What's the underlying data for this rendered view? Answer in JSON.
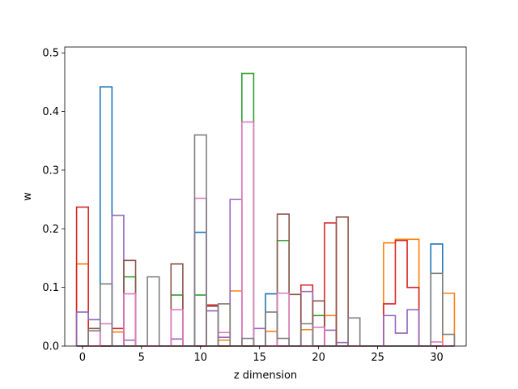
{
  "chart_data": {
    "type": "step",
    "xlabel": "z dimension",
    "ylabel": "w",
    "xlim": [
      -1.5,
      32.5
    ],
    "ylim": [
      0,
      0.51
    ],
    "x_ticks": [
      0,
      5,
      10,
      15,
      20,
      25,
      30
    ],
    "x_tick_labels": [
      "0",
      "5",
      "10",
      "15",
      "20",
      "25",
      "30"
    ],
    "y_ticks": [
      0.0,
      0.1,
      0.2,
      0.3,
      0.4,
      0.5
    ],
    "y_tick_labels": [
      "0.0",
      "0.1",
      "0.2",
      "0.3",
      "0.4",
      "0.5"
    ],
    "grid": false,
    "x": [
      0,
      1,
      2,
      3,
      4,
      5,
      6,
      7,
      8,
      9,
      10,
      11,
      12,
      13,
      14,
      15,
      16,
      17,
      18,
      19,
      20,
      21,
      22,
      23,
      24,
      25,
      26,
      27,
      28,
      29,
      30,
      31
    ],
    "series": [
      {
        "color": "#1f77b4",
        "values": [
          0.0,
          0.0,
          0.442,
          0.0,
          0.0,
          0.0,
          0.0,
          0.0,
          0.0,
          0.0,
          0.194,
          0.0,
          0.0,
          0.0,
          0.0,
          0.0,
          0.089,
          0.0,
          0.0,
          0.0,
          0.0,
          0.0,
          0.0,
          0.0,
          0.0,
          0.0,
          0.0,
          0.0,
          0.0,
          0.0,
          0.174,
          0.0
        ]
      },
      {
        "color": "#ff7f0e",
        "values": [
          0.14,
          0.0,
          0.0,
          0.024,
          0.0,
          0.0,
          0.0,
          0.0,
          0.0,
          0.0,
          0.0,
          0.0,
          0.01,
          0.094,
          0.0,
          0.0,
          0.025,
          0.0,
          0.0,
          0.028,
          0.0,
          0.052,
          0.0,
          0.0,
          0.0,
          0.0,
          0.176,
          0.182,
          0.182,
          0.0,
          0.0,
          0.09
        ]
      },
      {
        "color": "#2ca02c",
        "values": [
          0.0,
          0.0,
          0.0,
          0.0,
          0.118,
          0.0,
          0.0,
          0.0,
          0.087,
          0.0,
          0.087,
          0.0,
          0.0,
          0.0,
          0.465,
          0.0,
          0.0,
          0.18,
          0.0,
          0.0,
          0.052,
          0.0,
          0.0,
          0.0,
          0.0,
          0.0,
          0.0,
          0.0,
          0.0,
          0.0,
          0.0,
          0.0
        ]
      },
      {
        "color": "#d62728",
        "values": [
          0.237,
          0.0,
          0.0,
          0.03,
          0.0,
          0.0,
          0.0,
          0.0,
          0.0,
          0.0,
          0.0,
          0.07,
          0.0,
          0.0,
          0.0,
          0.0,
          0.0,
          0.0,
          0.0,
          0.104,
          0.0,
          0.21,
          0.0,
          0.0,
          0.0,
          0.0,
          0.072,
          0.18,
          0.1,
          0.0,
          0.0,
          0.0
        ]
      },
      {
        "color": "#9467bd",
        "values": [
          0.058,
          0.045,
          0.0,
          0.223,
          0.01,
          0.0,
          0.0,
          0.0,
          0.012,
          0.0,
          0.0,
          0.06,
          0.015,
          0.25,
          0.0,
          0.03,
          0.0,
          0.0,
          0.0,
          0.093,
          0.0,
          0.027,
          0.006,
          0.0,
          0.0,
          0.0,
          0.052,
          0.022,
          0.062,
          0.0,
          0.0,
          0.0
        ]
      },
      {
        "color": "#8c564b",
        "values": [
          0.0,
          0.03,
          0.0,
          0.0,
          0.146,
          0.0,
          0.0,
          0.0,
          0.14,
          0.0,
          0.0,
          0.068,
          0.0,
          0.0,
          0.0,
          0.0,
          0.0,
          0.225,
          0.088,
          0.0,
          0.077,
          0.0,
          0.22,
          0.0,
          0.0,
          0.0,
          0.0,
          0.0,
          0.0,
          0.0,
          0.0,
          0.0
        ]
      },
      {
        "color": "#e377c2",
        "values": [
          0.0,
          0.0,
          0.038,
          0.0,
          0.089,
          0.0,
          0.0,
          0.0,
          0.062,
          0.0,
          0.252,
          0.0,
          0.023,
          0.0,
          0.382,
          0.0,
          0.0,
          0.09,
          0.0,
          0.0,
          0.032,
          0.0,
          0.0,
          0.0,
          0.0,
          0.0,
          0.0,
          0.0,
          0.0,
          0.0,
          0.007,
          0.0
        ]
      },
      {
        "color": "#7f7f7f",
        "values": [
          0.0,
          0.026,
          0.106,
          0.0,
          0.0,
          0.0,
          0.118,
          0.0,
          0.0,
          0.0,
          0.36,
          0.0,
          0.072,
          0.0,
          0.013,
          0.0,
          0.058,
          0.013,
          0.0,
          0.038,
          0.0,
          0.0,
          0.0,
          0.048,
          0.0,
          0.0,
          0.0,
          0.0,
          0.0,
          0.0,
          0.124,
          0.02
        ]
      }
    ]
  }
}
